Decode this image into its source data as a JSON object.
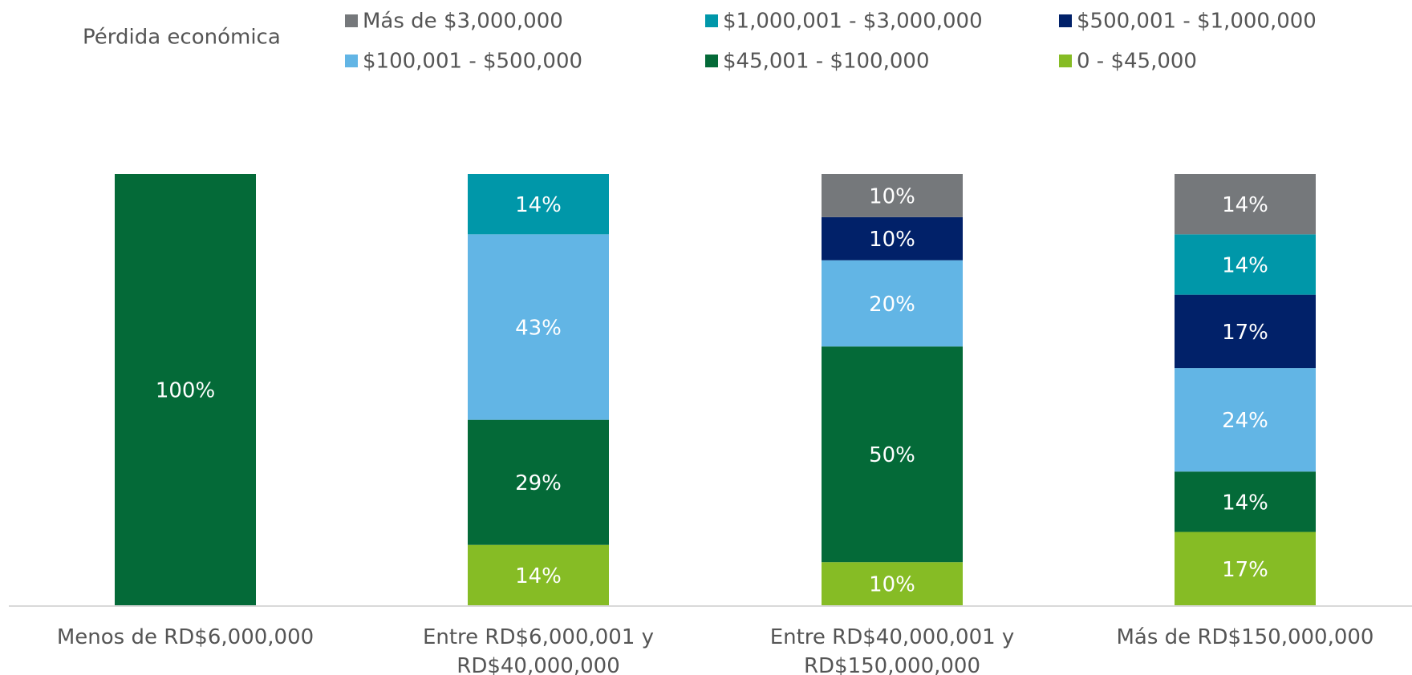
{
  "chart_data": {
    "type": "stacked_bar",
    "legend_title": "Pérdida económica",
    "categories": [
      "Menos de RD$6,000,000",
      "Entre RD$6,000,001 y RD$40,000,000",
      "Entre RD$40,000,001 y RD$150,000,000",
      "Más de RD$150,000,000"
    ],
    "ylim": [
      0,
      100
    ],
    "series": [
      {
        "name": "0 - $45,000",
        "color": "#86bc25",
        "values": [
          null,
          14,
          10,
          17
        ],
        "value_labels": [
          null,
          "14%",
          "10%",
          "17%"
        ]
      },
      {
        "name": "$45,001 - $100,000",
        "color": "#046a38",
        "values": [
          100,
          29,
          50,
          14
        ],
        "value_labels": [
          "100%",
          "29%",
          "50%",
          "14%"
        ]
      },
      {
        "name": "$100,001 - $500,000",
        "color": "#62b5e5",
        "values": [
          null,
          43,
          20,
          24
        ],
        "value_labels": [
          null,
          "43%",
          "20%",
          "24%"
        ]
      },
      {
        "name": "$500,001 - $1,000,000",
        "color": "#012169",
        "values": [
          null,
          null,
          10,
          17
        ],
        "value_labels": [
          null,
          null,
          "10%",
          "17%"
        ]
      },
      {
        "name": "$1,000,001 - $3,000,000",
        "color": "#0097a9",
        "values": [
          null,
          14,
          null,
          14
        ],
        "value_labels": [
          null,
          "14%",
          null,
          "14%"
        ]
      },
      {
        "name": "Más de $3,000,000",
        "color": "#75787b",
        "values": [
          null,
          null,
          10,
          14
        ],
        "value_labels": [
          null,
          null,
          "10%",
          "14%"
        ]
      }
    ]
  }
}
